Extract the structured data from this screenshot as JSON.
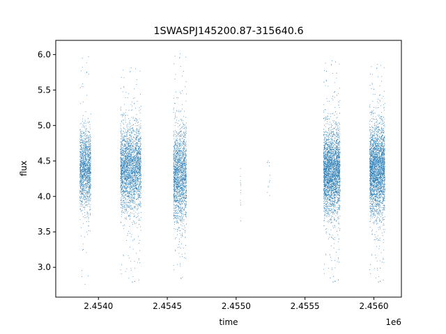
{
  "chart_data": {
    "type": "scatter",
    "title": "1SWASPJ145200.87-315640.6",
    "xlabel": "time",
    "ylabel": "flux",
    "x_offset_label": "1e6",
    "xlim": [
      2.45369,
      2.4562
    ],
    "ylim": [
      2.58,
      6.2
    ],
    "xticks": [
      2.454,
      2.4545,
      2.455,
      2.4555,
      2.456
    ],
    "xtick_labels": [
      "2.4540",
      "2.4545",
      "2.4550",
      "2.4555",
      "2.4560"
    ],
    "yticks": [
      3.0,
      3.5,
      4.0,
      4.5,
      5.0,
      5.5,
      6.0
    ],
    "ytick_labels": [
      "3.0",
      "3.5",
      "4.0",
      "4.5",
      "5.0",
      "5.5",
      "6.0"
    ],
    "marker_color": "#1f77b4",
    "grid": false,
    "series": [
      {
        "clusters": [
          {
            "x_range": [
              2.453865,
              2.453945
            ],
            "y_center": 4.38,
            "y_spread": 0.28,
            "y_range": [
              2.75,
              6.05
            ],
            "points": 1400
          },
          {
            "x_range": [
              2.45416,
              2.45431
            ],
            "y_center": 4.4,
            "y_spread": 0.3,
            "y_range": [
              2.75,
              5.85
            ],
            "points": 2600
          },
          {
            "x_range": [
              2.454545,
              2.45464
            ],
            "y_center": 4.3,
            "y_spread": 0.33,
            "y_range": [
              2.8,
              6.05
            ],
            "points": 1800
          },
          {
            "x_range": [
              2.45503,
              2.455035
            ],
            "y_center": 4.1,
            "y_spread": 0.25,
            "y_range": [
              3.5,
              4.85
            ],
            "points": 12
          },
          {
            "x_range": [
              2.455225,
              2.455245
            ],
            "y_center": 4.2,
            "y_spread": 0.3,
            "y_range": [
              3.5,
              5.1
            ],
            "points": 12
          },
          {
            "x_range": [
              2.455635,
              2.455755
            ],
            "y_center": 4.35,
            "y_spread": 0.3,
            "y_range": [
              2.75,
              5.95
            ],
            "points": 3200
          },
          {
            "x_range": [
              2.45597,
              2.45608
            ],
            "y_center": 4.38,
            "y_spread": 0.32,
            "y_range": [
              2.75,
              5.9
            ],
            "points": 3000
          }
        ]
      }
    ]
  }
}
